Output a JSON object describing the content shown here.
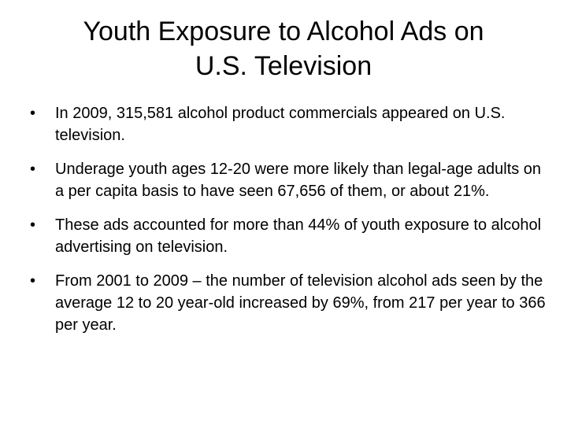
{
  "slide": {
    "title_line1": "Youth Exposure to Alcohol Ads on",
    "title_line2": "U.S. Television",
    "bullet_symbol": "•",
    "bullets": [
      "In 2009, 315,581 alcohol product commercials appeared on U.S. television.",
      "Underage youth ages 12-20 were more likely than legal-age adults on a per capita basis to have seen 67,656 of them, or about 21%.",
      "These ads accounted for more than 44% of youth exposure to alcohol advertising on television.",
      "From 2001 to 2009 – the number of television alcohol ads seen by the average 12 to 20 year-old increased by 69%, from 217 per year to 366 per year."
    ]
  }
}
